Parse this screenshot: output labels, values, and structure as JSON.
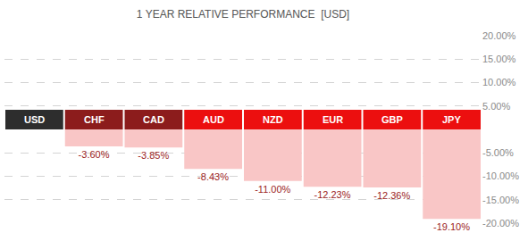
{
  "chart_data": {
    "type": "bar",
    "title": "1 YEAR RELATIVE PERFORMANCE  [USD]",
    "categories": [
      "USD",
      "CHF",
      "CAD",
      "AUD",
      "NZD",
      "EUR",
      "GBP",
      "JPY"
    ],
    "values": [
      null,
      -3.6,
      -3.85,
      -8.43,
      -11.0,
      -12.23,
      -12.36,
      -19.1
    ],
    "value_labels": [
      null,
      "-3.60%",
      "-3.85%",
      "-8.43%",
      "-11.00%",
      "-12.23%",
      "-12.36%",
      "-19.10%"
    ],
    "data_labels": true,
    "color": "#f9c6c6",
    "colors": [
      "#2d2d2d",
      "#8c1c1c",
      "#8c1c1c",
      "#ec0f0f",
      "#ec0f0f",
      "#ec0f0f",
      "#ec0f0f",
      "#ec0f0f"
    ],
    "ylim": [
      -20,
      20
    ],
    "yticks": [
      {
        "value": -20,
        "label": "-20.00%"
      },
      {
        "value": -15,
        "label": "-15.00%"
      },
      {
        "value": -10,
        "label": "-10.00%"
      },
      {
        "value": -5,
        "label": "-5.00%"
      },
      {
        "value": 5,
        "label": "5.00%"
      },
      {
        "value": 10,
        "label": "10.00%"
      },
      {
        "value": 15,
        "label": "15.00%"
      },
      {
        "value": 20,
        "label": "20.00%"
      }
    ],
    "grid": true
  }
}
